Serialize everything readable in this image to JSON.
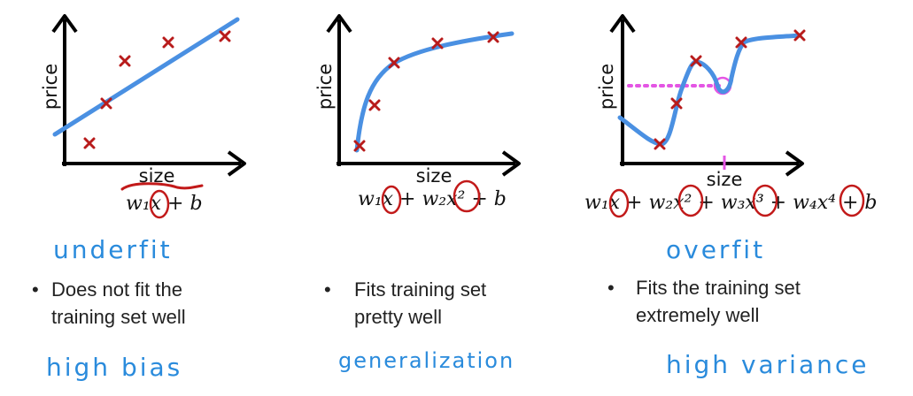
{
  "panels": [
    {
      "ylabel": "price",
      "xlabel": "size",
      "equation": "w₁x + b",
      "fit_label": "underfit",
      "bullet_line1": "Does not fit the",
      "bullet_line2": "training set well",
      "footer": "high bias"
    },
    {
      "ylabel": "price",
      "xlabel": "size",
      "equation": "w₁x + w₂x² + b",
      "fit_label": "",
      "bullet_line1": "Fits training set",
      "bullet_line2": "pretty well",
      "footer": "generalization"
    },
    {
      "ylabel": "price",
      "xlabel": "size",
      "equation": "w₁x + w₂x² + w₃x³ + w₄x⁴ + b",
      "fit_label": "overfit",
      "bullet_line1": "Fits the training set",
      "bullet_line2": "extremely well",
      "footer": "high variance"
    }
  ],
  "bullet": "•",
  "colors": {
    "curve": "#4a90e2",
    "marker": "#b81b1b",
    "annotation_blue": "#2a8bdc",
    "highlight_pink": "#e455e4",
    "circle_red": "#b81b1b"
  }
}
